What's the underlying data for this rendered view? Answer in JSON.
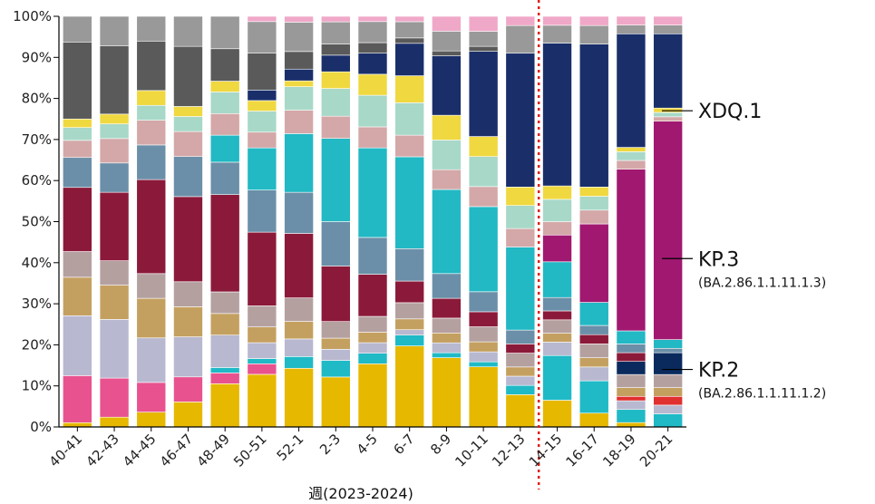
{
  "chart_data": {
    "type": "bar",
    "stacked": true,
    "normalized": true,
    "xlabel": "週(2023-2024)",
    "ylabel": "",
    "ylim": [
      0,
      100
    ],
    "yticks": [
      "0%",
      "10%",
      "20%",
      "30%",
      "40%",
      "50%",
      "60%",
      "70%",
      "80%",
      "90%",
      "100%"
    ],
    "categories": [
      "40-41",
      "42-43",
      "44-45",
      "46-47",
      "48-49",
      "50-51",
      "52-1",
      "2-3",
      "4-5",
      "6-7",
      "8-9",
      "10-11",
      "12-13",
      "14-15",
      "16-17",
      "18-19",
      "20-21"
    ],
    "divider_after_category": "12-13",
    "annotations": [
      {
        "label": "XDQ.1",
        "sub": "",
        "y": 77
      },
      {
        "label": "KP.3",
        "sub": "(BA.2.86.1.1.11.1.3)",
        "y": 41
      },
      {
        "label": "KP.2",
        "sub": "(BA.2.86.1.1.11.1.2)",
        "y": 14
      }
    ],
    "series": [
      {
        "color": "#e6b800",
        "values": [
          1,
          2,
          3,
          5,
          8,
          10,
          10,
          9,
          12,
          15,
          14,
          12,
          7,
          6,
          3,
          1,
          0
        ]
      },
      {
        "color": "#e8538f",
        "values": [
          11,
          8,
          6,
          5,
          2,
          2,
          0,
          0,
          0,
          0,
          0,
          0,
          0,
          0,
          0,
          0,
          0
        ]
      },
      {
        "color": "#1fbac6",
        "values": [
          0,
          0,
          0,
          0,
          1,
          1,
          2,
          3,
          2,
          2,
          1,
          1,
          2,
          10,
          7,
          3,
          3
        ]
      },
      {
        "color": "#b8b8d0",
        "values": [
          14,
          12,
          9,
          8,
          6,
          3,
          3,
          2,
          2,
          1,
          2,
          2,
          2,
          3,
          3,
          2,
          2
        ]
      },
      {
        "color": "#e03030",
        "values": [
          0,
          0,
          0,
          0,
          0,
          0,
          0,
          0,
          0,
          0,
          0,
          0,
          0,
          0,
          0,
          1,
          2
        ]
      },
      {
        "color": "#c4a060",
        "values": [
          9,
          7,
          8,
          6,
          4,
          3,
          3,
          2,
          2,
          2,
          2,
          2,
          2,
          2,
          2,
          2,
          2
        ]
      },
      {
        "color": "#b5a0a0",
        "values": [
          6,
          5,
          5,
          5,
          4,
          4,
          4,
          3,
          3,
          3,
          3,
          3,
          3,
          3,
          3,
          3,
          3
        ]
      },
      {
        "color": "#0a2a5e",
        "values": [
          0,
          0,
          0,
          0,
          0,
          0,
          0,
          0,
          0,
          0,
          0,
          0,
          0,
          0,
          0,
          3,
          5
        ]
      },
      {
        "color": "#8b1a3a",
        "values": [
          15,
          14,
          19,
          17,
          18,
          14,
          11,
          10,
          8,
          4,
          4,
          3,
          2,
          2,
          2,
          2,
          0
        ]
      },
      {
        "color": "#6b8fa8",
        "values": [
          7,
          6,
          7,
          8,
          6,
          8,
          7,
          8,
          7,
          6,
          5,
          4,
          3,
          3,
          2,
          2,
          1
        ]
      },
      {
        "color": "#22b8c4",
        "values": [
          0,
          0,
          0,
          0,
          5,
          8,
          10,
          15,
          17,
          17,
          17,
          17,
          18,
          8,
          5,
          3,
          2
        ]
      },
      {
        "color": "#a01870",
        "values": [
          0,
          0,
          0,
          0,
          0,
          0,
          0,
          0,
          0,
          0,
          0,
          0,
          0,
          6,
          17,
          37,
          50
        ]
      },
      {
        "color": "#d4a8a8",
        "values": [
          4,
          5,
          5,
          5,
          4,
          3,
          4,
          4,
          4,
          4,
          4,
          4,
          4,
          3,
          3,
          2,
          1
        ]
      },
      {
        "color": "#a8d8c8",
        "values": [
          3,
          3,
          3,
          3,
          4,
          4,
          4,
          5,
          6,
          6,
          6,
          6,
          5,
          5,
          3,
          2,
          1
        ]
      },
      {
        "color": "#f0d840",
        "values": [
          2,
          2,
          3,
          2,
          2,
          2,
          1,
          3,
          4,
          5,
          5,
          4,
          4,
          3,
          2,
          1,
          1
        ]
      },
      {
        "color": "#1a2f6a",
        "values": [
          0,
          0,
          0,
          0,
          0,
          2,
          2,
          3,
          4,
          6,
          12,
          17,
          29,
          32,
          31,
          26,
          17
        ]
      },
      {
        "color": "#5a5a5a",
        "values": [
          18,
          14,
          10,
          12,
          6,
          7,
          3,
          2,
          2,
          1,
          1,
          1,
          0,
          0,
          0,
          0,
          0
        ]
      },
      {
        "color": "#999999",
        "values": [
          6,
          6,
          5,
          6,
          6,
          6,
          5,
          4,
          4,
          3,
          4,
          3,
          6,
          4,
          4,
          2,
          2
        ]
      },
      {
        "color": "#f0a8c8",
        "values": [
          0,
          0,
          0,
          0,
          0,
          1,
          1,
          1,
          1,
          1,
          3,
          3,
          2,
          2,
          2,
          2,
          2
        ]
      }
    ]
  }
}
